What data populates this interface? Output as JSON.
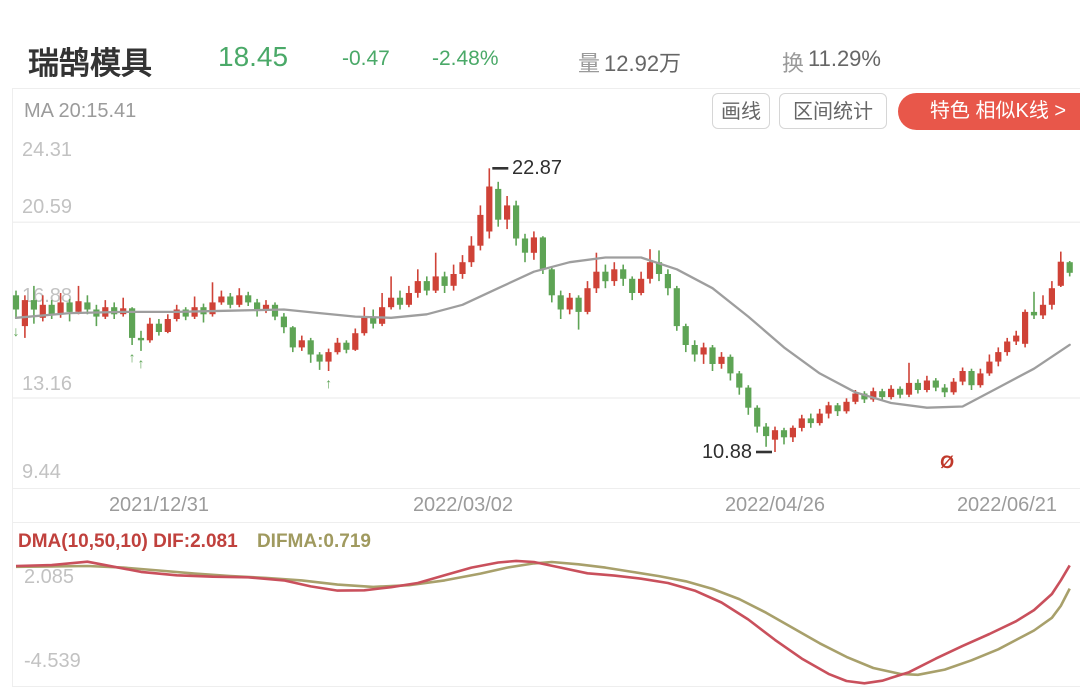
{
  "header": {
    "title": "瑞鹄模具",
    "price": "18.45",
    "change": "-0.47",
    "change_pct": "-2.48%",
    "volume_label": "量",
    "volume_value": "12.92万",
    "turnover_label": "换",
    "turnover_value": "11.29%"
  },
  "toolbar": {
    "ma_label": "MA 20:15.41",
    "buttons": {
      "draw": "画线",
      "range": "区间统计",
      "feature": "特色 相似K线 >"
    }
  },
  "colors": {
    "up": "#cf4237",
    "down": "#5ea455",
    "ma": "#9e9e9e",
    "dif": "#c9505c",
    "difma": "#a8a06b",
    "accent": "#e8574a",
    "quote_green": "#4aa968"
  },
  "chart_data": {
    "type": "candlestick",
    "price_axis": {
      "ticks": [
        "24.31",
        "20.59",
        "16.88",
        "13.16",
        "9.44"
      ],
      "ylim": [
        9.44,
        24.31
      ],
      "grid": "horizontal-light"
    },
    "x_axis": {
      "ticks": [
        {
          "label": "2021/12/31",
          "index": 16
        },
        {
          "label": "2022/03/02",
          "index": 50
        },
        {
          "label": "2022/04/26",
          "index": 85
        },
        {
          "label": "2022/06/21",
          "index": 111
        }
      ]
    },
    "candles": [
      [
        17.5,
        16.9,
        17.7,
        16.5
      ],
      [
        16.2,
        17.3,
        17.5,
        15.7
      ],
      [
        17.3,
        16.9,
        17.9,
        16.3
      ],
      [
        16.55,
        17.1,
        17.5,
        16.4
      ],
      [
        17.1,
        16.7,
        17.3,
        16.5
      ],
      [
        16.7,
        17.2,
        17.6,
        16.55
      ],
      [
        17.2,
        16.8,
        17.35,
        16.4
      ],
      [
        16.8,
        17.25,
        17.9,
        16.7
      ],
      [
        17.2,
        16.9,
        17.5,
        16.7
      ],
      [
        16.9,
        16.6,
        17.1,
        16.2
      ],
      [
        16.6,
        17.0,
        17.3,
        16.5
      ],
      [
        17.0,
        16.7,
        17.2,
        16.5
      ],
      [
        16.7,
        16.95,
        17.4,
        16.6
      ],
      [
        16.95,
        15.7,
        17.0,
        15.4
      ],
      [
        15.7,
        15.6,
        16.0,
        15.15
      ],
      [
        15.6,
        16.3,
        16.55,
        15.5
      ],
      [
        16.3,
        15.95,
        16.5,
        15.8
      ],
      [
        15.95,
        16.5,
        16.7,
        15.9
      ],
      [
        16.5,
        16.9,
        17.1,
        16.4
      ],
      [
        16.9,
        16.6,
        17.0,
        16.45
      ],
      [
        16.6,
        17.0,
        17.45,
        16.5
      ],
      [
        17.0,
        16.7,
        17.15,
        16.35
      ],
      [
        16.7,
        17.2,
        18.05,
        16.6
      ],
      [
        17.2,
        17.45,
        17.7,
        17.1
      ],
      [
        17.45,
        17.1,
        17.6,
        16.95
      ],
      [
        17.1,
        17.5,
        17.8,
        17.0
      ],
      [
        17.5,
        17.2,
        17.65,
        17.05
      ],
      [
        17.2,
        16.9,
        17.35,
        16.6
      ],
      [
        16.9,
        17.1,
        17.3,
        16.75
      ],
      [
        17.1,
        16.6,
        17.2,
        16.45
      ],
      [
        16.6,
        16.15,
        16.75,
        15.9
      ],
      [
        16.15,
        15.3,
        16.2,
        15.1
      ],
      [
        15.3,
        15.6,
        15.8,
        15.15
      ],
      [
        15.6,
        15.0,
        15.7,
        14.65
      ],
      [
        15.0,
        14.7,
        15.1,
        14.35
      ],
      [
        14.7,
        15.1,
        15.25,
        14.3
      ],
      [
        15.1,
        15.5,
        15.7,
        15.0
      ],
      [
        15.5,
        15.2,
        15.6,
        15.05
      ],
      [
        15.2,
        15.9,
        16.1,
        15.15
      ],
      [
        15.9,
        16.55,
        17.0,
        15.8
      ],
      [
        16.55,
        16.3,
        16.9,
        16.1
      ],
      [
        16.3,
        17.0,
        17.6,
        16.2
      ],
      [
        17.0,
        17.4,
        18.3,
        16.9
      ],
      [
        17.4,
        17.1,
        17.7,
        16.9
      ],
      [
        17.1,
        17.6,
        17.9,
        17.0
      ],
      [
        17.6,
        18.1,
        18.6,
        17.4
      ],
      [
        18.1,
        17.7,
        18.3,
        17.5
      ],
      [
        17.7,
        18.3,
        19.3,
        17.6
      ],
      [
        18.3,
        17.9,
        18.5,
        17.6
      ],
      [
        17.9,
        18.4,
        18.8,
        17.7
      ],
      [
        18.4,
        18.9,
        19.2,
        18.2
      ],
      [
        18.9,
        19.6,
        20.0,
        18.7
      ],
      [
        19.6,
        20.9,
        21.3,
        19.4
      ],
      [
        20.2,
        22.1,
        22.87,
        19.9
      ],
      [
        22.0,
        20.7,
        22.3,
        20.4
      ],
      [
        20.7,
        21.3,
        21.7,
        20.3
      ],
      [
        21.3,
        19.9,
        21.5,
        19.6
      ],
      [
        19.9,
        19.3,
        20.1,
        18.9
      ],
      [
        19.3,
        19.95,
        20.2,
        19.0
      ],
      [
        19.95,
        18.6,
        20.0,
        18.4
      ],
      [
        18.6,
        17.5,
        18.7,
        17.2
      ],
      [
        17.5,
        16.9,
        17.7,
        16.5
      ],
      [
        16.9,
        17.4,
        17.6,
        16.7
      ],
      [
        17.4,
        16.8,
        17.5,
        16.05
      ],
      [
        16.8,
        17.8,
        18.1,
        16.7
      ],
      [
        17.8,
        18.5,
        19.3,
        17.6
      ],
      [
        18.5,
        18.1,
        18.8,
        17.8
      ],
      [
        18.1,
        18.6,
        18.9,
        17.9
      ],
      [
        18.6,
        18.2,
        18.8,
        17.9
      ],
      [
        18.2,
        17.6,
        18.3,
        17.3
      ],
      [
        17.6,
        18.2,
        18.5,
        17.5
      ],
      [
        18.2,
        18.9,
        19.45,
        18.0
      ],
      [
        18.9,
        18.4,
        19.4,
        18.1
      ],
      [
        18.4,
        17.8,
        18.6,
        17.5
      ],
      [
        17.8,
        16.2,
        17.9,
        16.0
      ],
      [
        16.2,
        15.4,
        16.3,
        15.1
      ],
      [
        15.4,
        15.0,
        15.6,
        14.7
      ],
      [
        15.0,
        15.3,
        15.5,
        14.6
      ],
      [
        15.3,
        14.6,
        15.4,
        14.3
      ],
      [
        14.6,
        14.9,
        15.1,
        14.4
      ],
      [
        14.9,
        14.2,
        15.0,
        13.9
      ],
      [
        14.2,
        13.6,
        14.3,
        13.3
      ],
      [
        13.6,
        12.75,
        13.7,
        12.45
      ],
      [
        12.75,
        11.95,
        12.85,
        11.7
      ],
      [
        11.95,
        11.55,
        12.1,
        11.1
      ],
      [
        11.4,
        11.8,
        11.95,
        10.88
      ],
      [
        11.8,
        11.5,
        11.9,
        11.2
      ],
      [
        11.5,
        11.9,
        12.0,
        11.3
      ],
      [
        11.9,
        12.3,
        12.45,
        11.75
      ],
      [
        12.3,
        12.1,
        12.5,
        11.9
      ],
      [
        12.1,
        12.5,
        12.7,
        12.0
      ],
      [
        12.5,
        12.85,
        13.0,
        12.3
      ],
      [
        12.85,
        12.6,
        12.95,
        12.4
      ],
      [
        12.6,
        13.0,
        13.15,
        12.5
      ],
      [
        13.0,
        13.35,
        13.5,
        12.9
      ],
      [
        13.35,
        13.1,
        13.45,
        12.95
      ],
      [
        13.1,
        13.45,
        13.6,
        13.0
      ],
      [
        13.45,
        13.2,
        13.55,
        13.05
      ],
      [
        13.2,
        13.55,
        13.7,
        13.1
      ],
      [
        13.55,
        13.3,
        13.65,
        13.15
      ],
      [
        13.3,
        13.8,
        14.65,
        13.2
      ],
      [
        13.8,
        13.5,
        13.95,
        13.35
      ],
      [
        13.5,
        13.9,
        14.1,
        13.4
      ],
      [
        13.9,
        13.6,
        14.0,
        13.45
      ],
      [
        13.6,
        13.4,
        13.75,
        13.2
      ],
      [
        13.4,
        13.85,
        14.0,
        13.3
      ],
      [
        13.85,
        14.3,
        14.45,
        13.7
      ],
      [
        14.3,
        13.7,
        14.4,
        13.5
      ],
      [
        13.7,
        14.2,
        14.4,
        13.6
      ],
      [
        14.2,
        14.7,
        15.0,
        14.1
      ],
      [
        14.7,
        15.1,
        15.3,
        14.5
      ],
      [
        15.1,
        15.55,
        15.7,
        14.95
      ],
      [
        15.55,
        15.8,
        16.0,
        15.4
      ],
      [
        15.45,
        16.8,
        16.9,
        15.3
      ],
      [
        16.8,
        16.65,
        17.65,
        16.5
      ],
      [
        16.65,
        17.1,
        17.5,
        16.5
      ],
      [
        17.1,
        17.8,
        18.1,
        16.9
      ],
      [
        17.9,
        18.92,
        19.35,
        17.85
      ],
      [
        18.9,
        18.45,
        18.95,
        18.3
      ]
    ],
    "ma20": [
      [
        0,
        16.55
      ],
      [
        6,
        16.75
      ],
      [
        12,
        16.8
      ],
      [
        18,
        16.8
      ],
      [
        24,
        16.85
      ],
      [
        30,
        16.9
      ],
      [
        34,
        16.75
      ],
      [
        38,
        16.6
      ],
      [
        42,
        16.55
      ],
      [
        46,
        16.7
      ],
      [
        50,
        17.1
      ],
      [
        54,
        17.8
      ],
      [
        58,
        18.5
      ],
      [
        62,
        18.9
      ],
      [
        66,
        19.1
      ],
      [
        70,
        19.1
      ],
      [
        74,
        18.6
      ],
      [
        78,
        17.8
      ],
      [
        82,
        16.6
      ],
      [
        86,
        15.3
      ],
      [
        90,
        14.2
      ],
      [
        94,
        13.4
      ],
      [
        98,
        12.95
      ],
      [
        102,
        12.75
      ],
      [
        106,
        12.8
      ],
      [
        110,
        13.6
      ],
      [
        114,
        14.4
      ],
      [
        118,
        15.41
      ]
    ],
    "markers": [
      {
        "index": 0,
        "dir": "down"
      },
      {
        "index": 13,
        "dir": "up"
      },
      {
        "index": 14,
        "dir": "up"
      },
      {
        "index": 35,
        "dir": "up"
      }
    ],
    "annotations": {
      "high": {
        "label": "22.87",
        "value": 22.87,
        "index": 53
      },
      "low": {
        "label": "10.88",
        "value": 10.88,
        "index": 85
      }
    },
    "event_marker": {
      "glyph": "Ø"
    },
    "indicator": {
      "name": "DMA(10,50,10)",
      "dif_label": "DIF:2.081",
      "difma_label": "DIFMA:0.719",
      "axis_max": "2.085",
      "axis_min": "-4.539",
      "dif": [
        [
          0,
          2.05
        ],
        [
          4,
          2.1
        ],
        [
          8,
          2.3
        ],
        [
          11,
          2.0
        ],
        [
          14,
          1.7
        ],
        [
          18,
          1.5
        ],
        [
          22,
          1.42
        ],
        [
          26,
          1.38
        ],
        [
          30,
          1.2
        ],
        [
          33,
          0.85
        ],
        [
          36,
          0.6
        ],
        [
          39,
          0.62
        ],
        [
          42,
          0.8
        ],
        [
          45,
          1.05
        ],
        [
          48,
          1.5
        ],
        [
          51,
          1.95
        ],
        [
          54,
          2.25
        ],
        [
          56,
          2.35
        ],
        [
          58,
          2.28
        ],
        [
          61,
          1.95
        ],
        [
          64,
          1.62
        ],
        [
          67,
          1.48
        ],
        [
          70,
          1.3
        ],
        [
          73,
          1.05
        ],
        [
          76,
          0.6
        ],
        [
          79,
          -0.1
        ],
        [
          82,
          -1.1
        ],
        [
          85,
          -2.3
        ],
        [
          88,
          -3.4
        ],
        [
          91,
          -4.3
        ],
        [
          93,
          -4.72
        ],
        [
          95,
          -4.85
        ],
        [
          97,
          -4.7
        ],
        [
          100,
          -4.2
        ],
        [
          103,
          -3.4
        ],
        [
          106,
          -2.65
        ],
        [
          109,
          -1.95
        ],
        [
          112,
          -1.2
        ],
        [
          114,
          -0.55
        ],
        [
          116,
          0.4
        ],
        [
          117,
          1.2
        ],
        [
          118,
          2.081
        ]
      ],
      "difma": [
        [
          0,
          2.0
        ],
        [
          4,
          2.02
        ],
        [
          8,
          2.05
        ],
        [
          12,
          1.95
        ],
        [
          16,
          1.78
        ],
        [
          20,
          1.6
        ],
        [
          24,
          1.45
        ],
        [
          28,
          1.35
        ],
        [
          32,
          1.2
        ],
        [
          36,
          0.95
        ],
        [
          40,
          0.82
        ],
        [
          44,
          0.92
        ],
        [
          48,
          1.2
        ],
        [
          52,
          1.6
        ],
        [
          55,
          1.95
        ],
        [
          58,
          2.2
        ],
        [
          60,
          2.28
        ],
        [
          63,
          2.15
        ],
        [
          66,
          1.95
        ],
        [
          69,
          1.7
        ],
        [
          72,
          1.45
        ],
        [
          75,
          1.15
        ],
        [
          78,
          0.7
        ],
        [
          81,
          0.1
        ],
        [
          84,
          -0.7
        ],
        [
          87,
          -1.6
        ],
        [
          90,
          -2.5
        ],
        [
          93,
          -3.3
        ],
        [
          96,
          -3.95
        ],
        [
          99,
          -4.3
        ],
        [
          101,
          -4.35
        ],
        [
          104,
          -4.05
        ],
        [
          107,
          -3.5
        ],
        [
          110,
          -2.85
        ],
        [
          112,
          -2.3
        ],
        [
          114,
          -1.75
        ],
        [
          116,
          -1.0
        ],
        [
          117,
          -0.3
        ],
        [
          118,
          0.719
        ]
      ]
    }
  }
}
